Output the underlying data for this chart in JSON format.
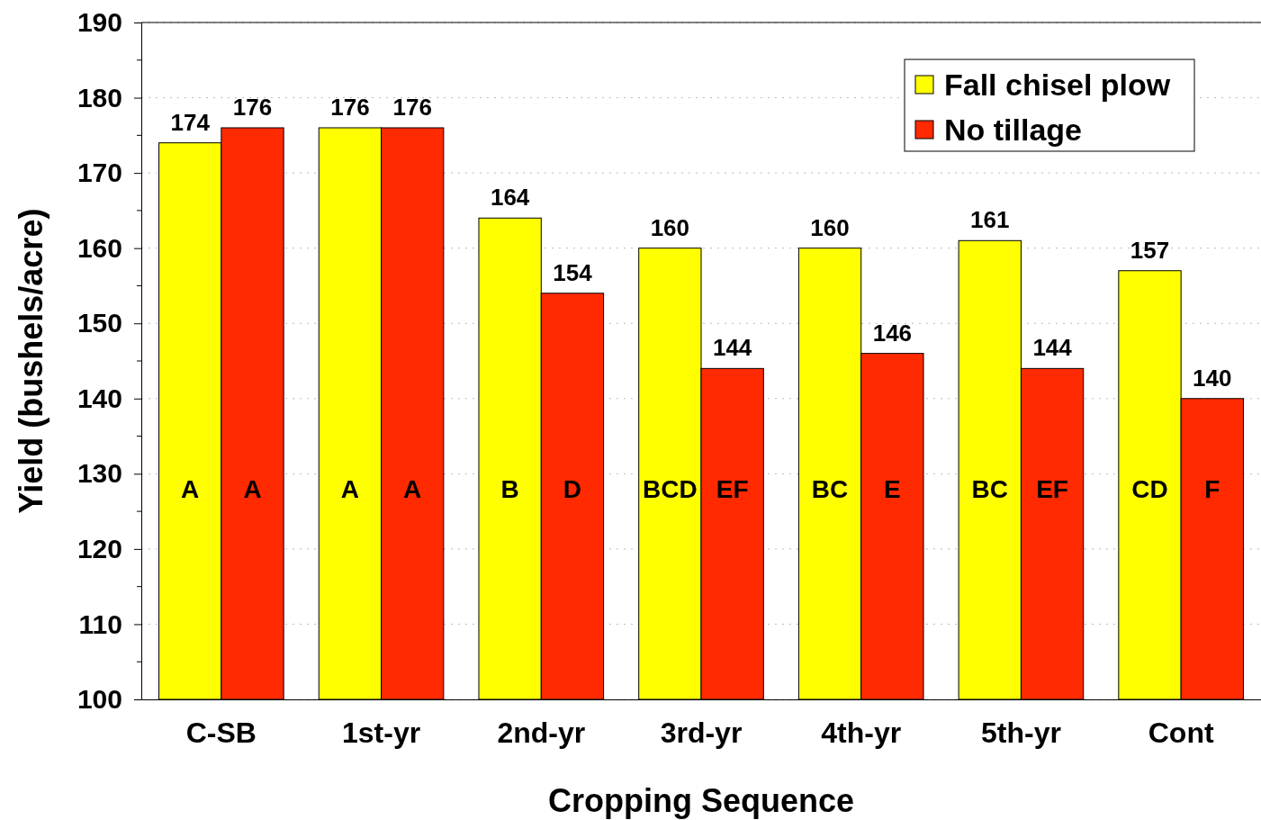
{
  "chart_data": {
    "type": "bar",
    "xlabel": "Cropping Sequence",
    "ylabel": "Yield (bushels/acre)",
    "categories": [
      "C-SB",
      "1st-yr",
      "2nd-yr",
      "3rd-yr",
      "4th-yr",
      "5th-yr",
      "Cont"
    ],
    "series": [
      {
        "name": "Fall chisel plow",
        "color": "#ffff00",
        "values": [
          174,
          176,
          164,
          160,
          160,
          161,
          157
        ]
      },
      {
        "name": "No tillage",
        "color": "#ff2a00",
        "values": [
          176,
          176,
          154,
          144,
          146,
          144,
          140
        ]
      }
    ],
    "ylim": [
      100,
      190
    ],
    "yticks": [
      100,
      110,
      120,
      130,
      140,
      150,
      160,
      170,
      180,
      190
    ],
    "grid": "y",
    "legend": "top right",
    "data_labels": true,
    "annotations": [
      "A",
      "A",
      "A",
      "A",
      "B",
      "D",
      "BCD",
      "EF",
      "BC",
      "E",
      "BC",
      "EF",
      "CD",
      "F"
    ]
  }
}
